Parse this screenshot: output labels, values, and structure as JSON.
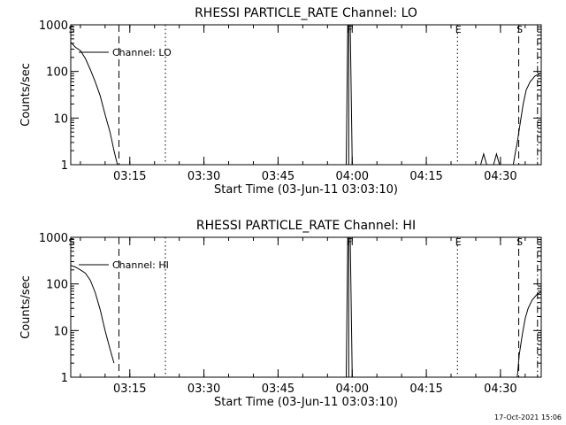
{
  "footer": {
    "timestamp": "17-Oct-2021 15:06"
  },
  "chart_data": [
    {
      "type": "line",
      "title": "RHESSI PARTICLE_RATE Channel: LO",
      "xlabel": "Start Time (03-Jun-11 03:03:10)",
      "ylabel": "Counts/sec",
      "y_scale": "log",
      "ylim": [
        1,
        1000
      ],
      "xlim_minutes": [
        3.05,
        98.25
      ],
      "x_ticks": [
        {
          "m": 15,
          "label": "03:15"
        },
        {
          "m": 30,
          "label": "03:30"
        },
        {
          "m": 45,
          "label": "03:45"
        },
        {
          "m": 60,
          "label": "04:00"
        },
        {
          "m": 75,
          "label": "04:15"
        },
        {
          "m": 90,
          "label": "04:30"
        }
      ],
      "y_ticks": [
        {
          "v": 1,
          "label": "1"
        },
        {
          "v": 10,
          "label": "10"
        },
        {
          "v": 100,
          "label": "100"
        },
        {
          "v": 1000,
          "label": "1000"
        }
      ],
      "legend": "Channel: LO",
      "series": [
        {
          "name": "Channel: LO",
          "points": [
            [
              3.05,
              420
            ],
            [
              4,
              330
            ],
            [
              5,
              280
            ],
            [
              6,
              190
            ],
            [
              7,
              110
            ],
            [
              8,
              60
            ],
            [
              9,
              30
            ],
            [
              10,
              12
            ],
            [
              11,
              5
            ],
            [
              11.8,
              2
            ],
            [
              12.5,
              1
            ]
          ]
        },
        {
          "points": [
            [
              58.8,
              1
            ],
            [
              59.1,
              1000
            ],
            [
              59.6,
              1000
            ],
            [
              60,
              1
            ]
          ]
        },
        {
          "points": [
            [
              86,
              1
            ],
            [
              86.6,
              1.7
            ],
            [
              87.2,
              1
            ]
          ]
        },
        {
          "points": [
            [
              88.6,
              1
            ],
            [
              89.2,
              1.7
            ],
            [
              89.8,
              1
            ]
          ]
        },
        {
          "points": [
            [
              92.6,
              1
            ],
            [
              93,
              1.8
            ],
            [
              93.4,
              3
            ],
            [
              94,
              8
            ],
            [
              94.6,
              20
            ],
            [
              95.2,
              40
            ],
            [
              96,
              60
            ],
            [
              97,
              80
            ],
            [
              98.25,
              92
            ]
          ]
        }
      ],
      "markers": [
        {
          "label": "S",
          "minute": 3.05,
          "style": "solid"
        },
        {
          "minute": 12.8,
          "style": "dashed"
        },
        {
          "minute": 22.2,
          "style": "dotted"
        },
        {
          "label": "F",
          "minute": 59.3,
          "style": "solid"
        },
        {
          "label": "E",
          "minute": 81.3,
          "style": "dotted"
        },
        {
          "label": "S",
          "minute": 93.7,
          "style": "dashed"
        },
        {
          "minute": 97.5,
          "style": "dashdot"
        }
      ]
    },
    {
      "type": "line",
      "title": "RHESSI PARTICLE_RATE Channel: HI",
      "xlabel": "Start Time (03-Jun-11 03:03:10)",
      "ylabel": "Counts/sec",
      "y_scale": "log",
      "ylim": [
        1,
        1000
      ],
      "xlim_minutes": [
        3.05,
        98.25
      ],
      "x_ticks": [
        {
          "m": 15,
          "label": "03:15"
        },
        {
          "m": 30,
          "label": "03:30"
        },
        {
          "m": 45,
          "label": "03:45"
        },
        {
          "m": 60,
          "label": "04:00"
        },
        {
          "m": 75,
          "label": "04:15"
        },
        {
          "m": 90,
          "label": "04:30"
        }
      ],
      "y_ticks": [
        {
          "v": 1,
          "label": "1"
        },
        {
          "v": 10,
          "label": "10"
        },
        {
          "v": 100,
          "label": "100"
        },
        {
          "v": 1000,
          "label": "1000"
        }
      ],
      "legend": "Channel: HI",
      "series": [
        {
          "name": "Channel: HI",
          "points": [
            [
              3.05,
              250
            ],
            [
              4,
              230
            ],
            [
              5,
              200
            ],
            [
              6,
              170
            ],
            [
              7,
              120
            ],
            [
              8,
              65
            ],
            [
              9,
              28
            ],
            [
              10,
              10
            ],
            [
              11,
              4
            ],
            [
              11.8,
              2
            ]
          ]
        },
        {
          "points": [
            [
              58.8,
              1
            ],
            [
              59.1,
              1000
            ],
            [
              59.6,
              1000
            ],
            [
              60,
              1
            ]
          ]
        },
        {
          "points": [
            [
              93.4,
              1
            ],
            [
              93.8,
              3
            ],
            [
              94.4,
              8
            ],
            [
              95,
              18
            ],
            [
              95.6,
              30
            ],
            [
              96.4,
              45
            ],
            [
              97.4,
              60
            ],
            [
              98.25,
              68
            ]
          ]
        }
      ],
      "markers": [
        {
          "label": "S",
          "minute": 3.05,
          "style": "solid"
        },
        {
          "minute": 12.8,
          "style": "dashed"
        },
        {
          "minute": 22.2,
          "style": "dotted"
        },
        {
          "label": "F",
          "minute": 59.3,
          "style": "solid"
        },
        {
          "label": "E",
          "minute": 81.3,
          "style": "dotted"
        },
        {
          "label": "S",
          "minute": 93.7,
          "style": "dashed"
        },
        {
          "minute": 97.5,
          "style": "dashdot"
        }
      ]
    }
  ]
}
